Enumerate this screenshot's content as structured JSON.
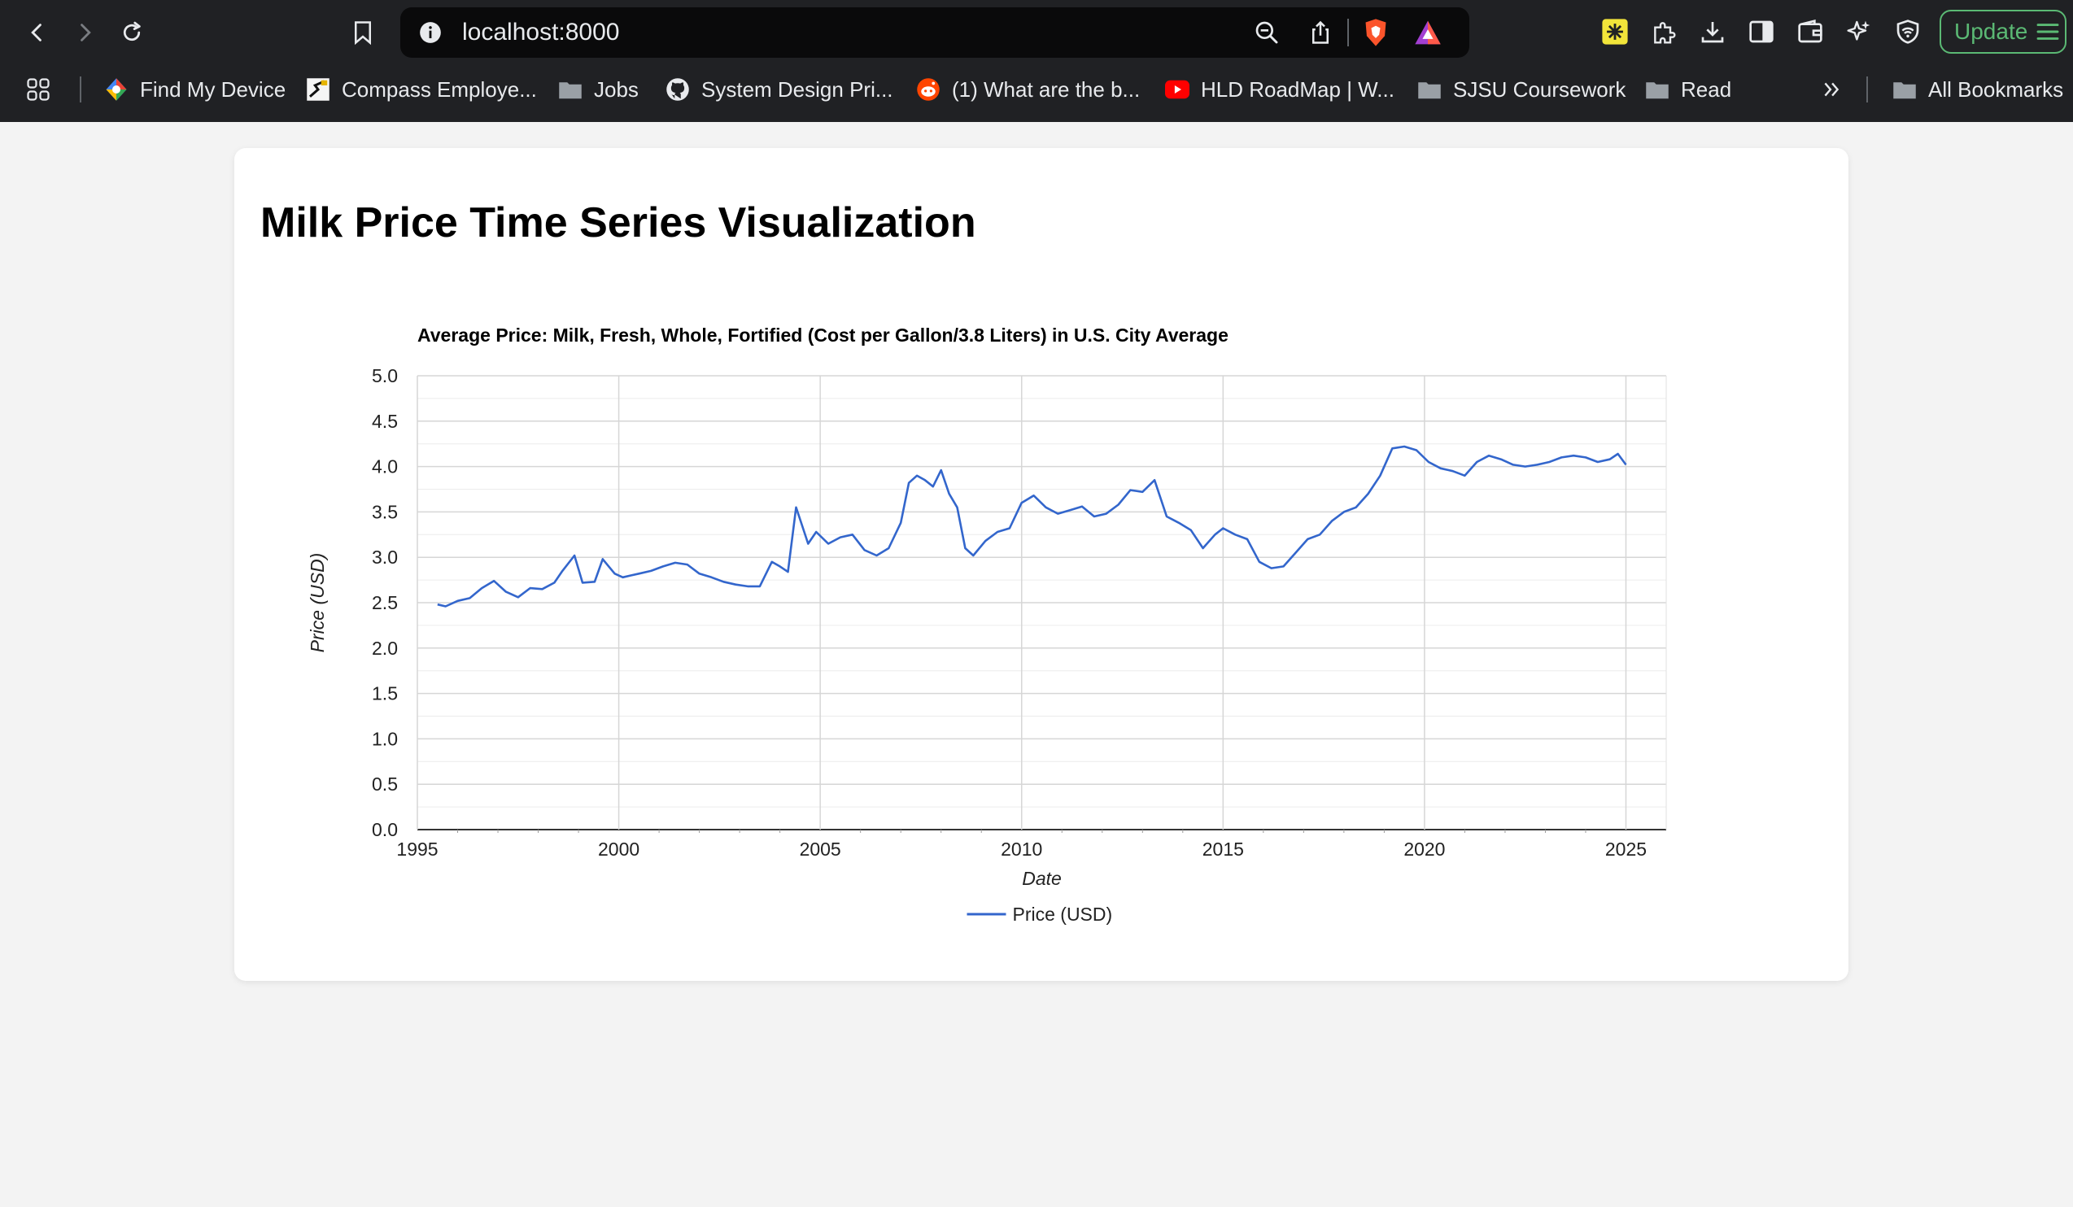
{
  "browser": {
    "url": "localhost:8000",
    "update_label": "Update",
    "bookmarks": [
      {
        "label": "Find My Device",
        "icon": "find-my-device-icon"
      },
      {
        "label": "Compass Employe...",
        "icon": "compass-icon"
      },
      {
        "label": "Jobs",
        "icon": "folder-icon"
      },
      {
        "label": "System Design Pri...",
        "icon": "github-icon"
      },
      {
        "label": "(1) What are the b...",
        "icon": "reddit-icon"
      },
      {
        "label": "HLD RoadMap | W...",
        "icon": "youtube-icon"
      },
      {
        "label": "SJSU Coursework",
        "icon": "folder-icon"
      },
      {
        "label": "Read",
        "icon": "folder-icon"
      }
    ],
    "all_bookmarks_label": "All Bookmarks"
  },
  "colors": {
    "series": "#3366cc",
    "update": "#5bb974",
    "chrome_bg": "#202124"
  },
  "page": {
    "title": "Milk Price Time Series Visualization"
  },
  "chart_data": {
    "type": "line",
    "title": "Average Price: Milk, Fresh, Whole, Fortified (Cost per Gallon/3.8 Liters) in U.S. City Average",
    "xlabel": "Date",
    "ylabel": "Price (USD)",
    "xlim": [
      1995,
      2026
    ],
    "ylim": [
      0,
      5
    ],
    "x_ticks": [
      "1995",
      "2000",
      "2005",
      "2010",
      "2015",
      "2020",
      "2025"
    ],
    "y_ticks": [
      "0.0",
      "0.5",
      "1.0",
      "1.5",
      "2.0",
      "2.5",
      "3.0",
      "3.5",
      "4.0",
      "4.5",
      "5.0"
    ],
    "grid": true,
    "legend_position": "bottom",
    "series": [
      {
        "name": "Price (USD)",
        "x": [
          1995.5,
          1995.7,
          1996.0,
          1996.3,
          1996.6,
          1996.9,
          1997.2,
          1997.5,
          1997.8,
          1998.1,
          1998.4,
          1998.6,
          1998.9,
          1999.1,
          1999.4,
          1999.6,
          1999.75,
          1999.9,
          2000.1,
          2000.3,
          2000.5,
          2000.8,
          2001.1,
          2001.4,
          2001.7,
          2002.0,
          2002.3,
          2002.6,
          2002.9,
          2003.2,
          2003.5,
          2003.8,
          2004.0,
          2004.2,
          2004.4,
          2004.55,
          2004.7,
          2004.9,
          2005.2,
          2005.5,
          2005.8,
          2006.1,
          2006.4,
          2006.7,
          2007.0,
          2007.2,
          2007.4,
          2007.6,
          2007.8,
          2008.0,
          2008.2,
          2008.4,
          2008.6,
          2008.8,
          2009.1,
          2009.4,
          2009.7,
          2010.0,
          2010.3,
          2010.6,
          2010.9,
          2011.2,
          2011.5,
          2011.8,
          2012.1,
          2012.4,
          2012.7,
          2013.0,
          2013.3,
          2013.6,
          2013.9,
          2014.2,
          2014.5,
          2014.8,
          2015.0,
          2015.3,
          2015.6,
          2015.9,
          2016.2,
          2016.5,
          2016.8,
          2017.1,
          2017.4,
          2017.7,
          2018.0,
          2018.3,
          2018.6,
          2018.9,
          2019.2,
          2019.5,
          2019.8,
          2020.1,
          2020.4,
          2020.7,
          2021.0,
          2021.3,
          2021.6,
          2021.9,
          2022.2,
          2022.5,
          2022.8,
          2023.1,
          2023.4,
          2023.7,
          2024.0,
          2024.3,
          2024.6,
          2024.8,
          2025.0
        ],
        "values": [
          2.48,
          2.46,
          2.52,
          2.55,
          2.66,
          2.74,
          2.62,
          2.56,
          2.66,
          2.65,
          2.72,
          2.85,
          3.02,
          2.72,
          2.73,
          2.98,
          2.9,
          2.82,
          2.78,
          2.8,
          2.82,
          2.85,
          2.9,
          2.94,
          2.92,
          2.82,
          2.78,
          2.73,
          2.7,
          2.68,
          2.68,
          2.95,
          2.9,
          2.84,
          3.55,
          3.35,
          3.15,
          3.28,
          3.15,
          3.22,
          3.25,
          3.08,
          3.02,
          3.1,
          3.38,
          3.82,
          3.9,
          3.85,
          3.78,
          3.96,
          3.7,
          3.55,
          3.1,
          3.02,
          3.18,
          3.28,
          3.32,
          3.6,
          3.68,
          3.55,
          3.48,
          3.52,
          3.56,
          3.45,
          3.48,
          3.58,
          3.74,
          3.72,
          3.85,
          3.45,
          3.38,
          3.3,
          3.1,
          3.25,
          3.32,
          3.25,
          3.2,
          2.95,
          2.88,
          2.9,
          3.05,
          3.2,
          3.25,
          3.4,
          3.5,
          3.55,
          3.7,
          3.9,
          4.2,
          4.22,
          4.18,
          4.05,
          3.98,
          3.95,
          3.9,
          4.05,
          4.12,
          4.08,
          4.02,
          4.0,
          4.02,
          4.05,
          4.1,
          4.12,
          4.1,
          4.05,
          4.08,
          4.14,
          4.02
        ]
      }
    ]
  }
}
